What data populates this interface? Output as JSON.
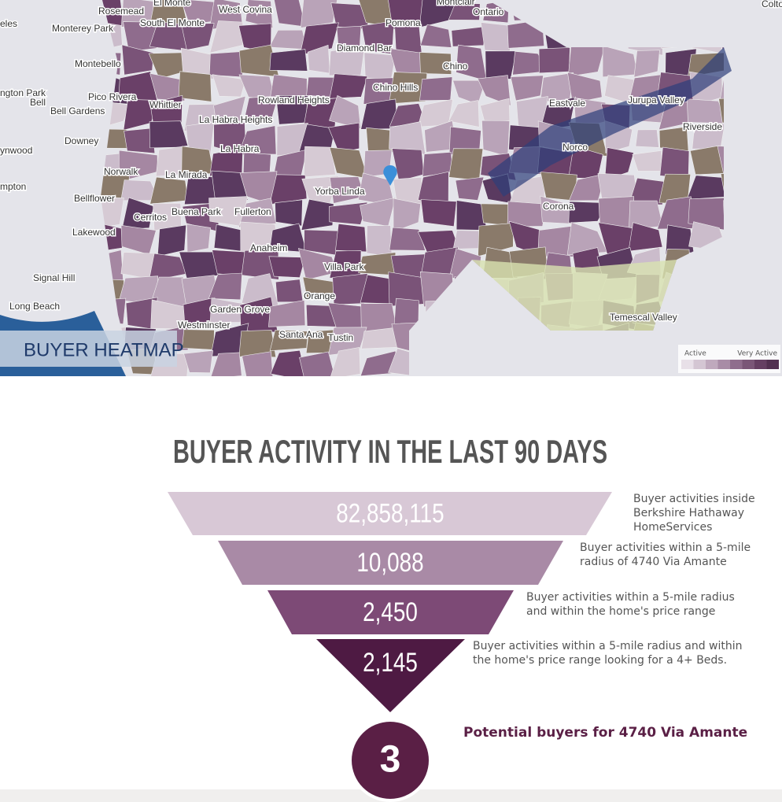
{
  "map": {
    "title": "BUYER HEATMAP",
    "places": [
      "Rosemead",
      "El Monte",
      "West Covina",
      "Montclair",
      "Ontario",
      "Colton",
      "eles",
      "Monterey Park",
      "South El Monte",
      "Pomona",
      "Diamond Bar",
      "Chino",
      "Montebello",
      "Pico Rivera",
      "Whittier",
      "Rowland Heights",
      "Chino Hills",
      "Eastvale",
      "Jurupa Valley",
      "Riverside",
      "Bell",
      "Bell Gardens",
      "Downey",
      "La Habra Heights",
      "La Habra",
      "Norco",
      "Norwalk",
      "La Mirada",
      "Yorba Linda",
      "Corona",
      "Bellflower",
      "Cerritos",
      "Buena Park",
      "Fullerton",
      "Lakewood",
      "Anaheim",
      "Signal Hill",
      "Villa Park",
      "Orange",
      "Long Beach",
      "Garden Grove",
      "Westminster",
      "Santa Ana",
      "Tustin",
      "Temescal Valley",
      "ynwood",
      "mpton",
      "ngton Park"
    ],
    "legend": {
      "low": "Active",
      "high": "Very Active"
    }
  },
  "funnel": {
    "title": "BUYER ACTIVITY IN THE LAST 90 DAYS",
    "stages": [
      {
        "value": "82,858,115",
        "description": "Buyer activities inside Berkshire Hathaway HomeServices"
      },
      {
        "value": "10,088",
        "description": "Buyer activities within a 5-mile radius of 4740 Via Amante"
      },
      {
        "value": "2,450",
        "description": "Buyer activities within a 5-mile radius and within the home's price range"
      },
      {
        "value": "2,145",
        "description": "Buyer activities within a 5-mile radius and within the home's price range looking for a 4+ Beds."
      }
    ],
    "result": {
      "value": "3",
      "label": "Potential buyers for 4740 Via Amante"
    }
  }
}
